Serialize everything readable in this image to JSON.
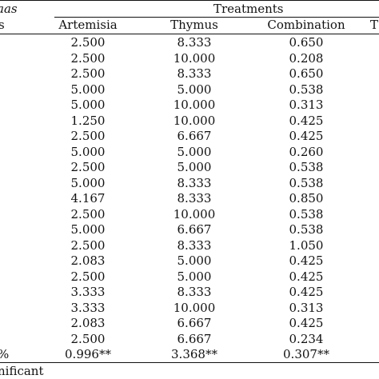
{
  "header": {
    "group_title": "Treatments",
    "left_label_partial": "aas",
    "left_sub_partial": "s",
    "columns": [
      "Artemisia",
      "Thymus",
      "Combination"
    ],
    "extra_col_partial": "T"
  },
  "rows": [
    [
      "2.500",
      "8.333",
      "0.650"
    ],
    [
      "2.500",
      "10.000",
      "0.208"
    ],
    [
      "2.500",
      "8.333",
      "0.650"
    ],
    [
      "5.000",
      "5.000",
      "0.538"
    ],
    [
      "5.000",
      "10.000",
      "0.313"
    ],
    [
      "1.250",
      "10.000",
      "0.425"
    ],
    [
      "2.500",
      "6.667",
      "0.425"
    ],
    [
      "5.000",
      "5.000",
      "0.260"
    ],
    [
      "2.500",
      "5.000",
      "0.538"
    ],
    [
      "5.000",
      "8.333",
      "0.538"
    ],
    [
      "4.167",
      "8.333",
      "0.850"
    ],
    [
      "2.500",
      "10.000",
      "0.538"
    ],
    [
      "5.000",
      "6.667",
      "0.538"
    ],
    [
      "2.500",
      "8.333",
      "1.050"
    ],
    [
      "2.083",
      "5.000",
      "0.425"
    ],
    [
      "2.500",
      "5.000",
      "0.425"
    ],
    [
      "3.333",
      "8.333",
      "0.425"
    ],
    [
      "3.333",
      "10.000",
      "0.313"
    ],
    [
      "2.083",
      "6.667",
      "0.425"
    ],
    [
      "2.500",
      "6.667",
      "0.234"
    ]
  ],
  "summary": {
    "label_partial": "%",
    "values": [
      "0.996**",
      "3.368**",
      "0.307**"
    ]
  },
  "footnote": "nificant"
}
